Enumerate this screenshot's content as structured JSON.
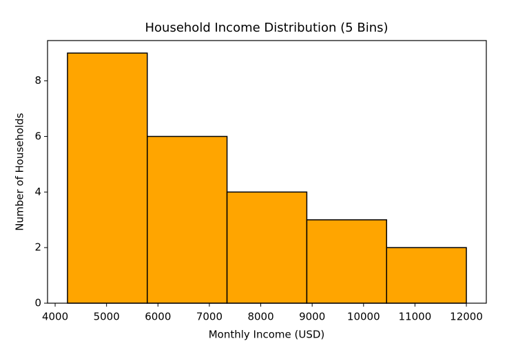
{
  "chart_data": {
    "type": "histogram",
    "title": "Household Income Distribution (5 Bins)",
    "x_label": "Monthly Income (USD)",
    "y_label": "Number of Households",
    "bins": [
      4240,
      5792,
      7344,
      8896,
      10448,
      12000
    ],
    "values": [
      9,
      6,
      4,
      3,
      2
    ],
    "color": "#ffa500",
    "edge_color": "#000000",
    "xlim": [
      3852,
      12388
    ],
    "xticks": [
      4000,
      5000,
      6000,
      7000,
      8000,
      9000,
      10000,
      11000,
      12000
    ],
    "ylim": [
      0,
      9.45
    ],
    "yticks": [
      0,
      2,
      4,
      6,
      8
    ]
  }
}
